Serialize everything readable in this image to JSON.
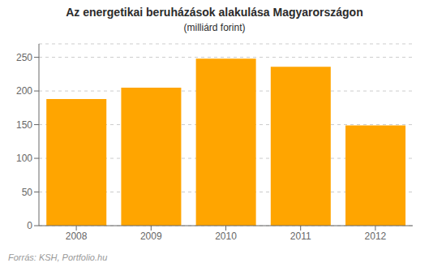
{
  "chart_data": {
    "type": "bar",
    "title": "Az energetikai beruházások alakulása Magyarországon",
    "subtitle": "(milliárd forint)",
    "categories": [
      "2008",
      "2009",
      "2010",
      "2011",
      "2012"
    ],
    "values": [
      188,
      205,
      248,
      236,
      149
    ],
    "color": "#FFA500",
    "ylim": [
      0,
      270
    ],
    "yticks": [
      0,
      50,
      100,
      150,
      200,
      250
    ],
    "grid": true,
    "annotations": [
      "Forrás: KSH, Portfolio.hu"
    ]
  }
}
